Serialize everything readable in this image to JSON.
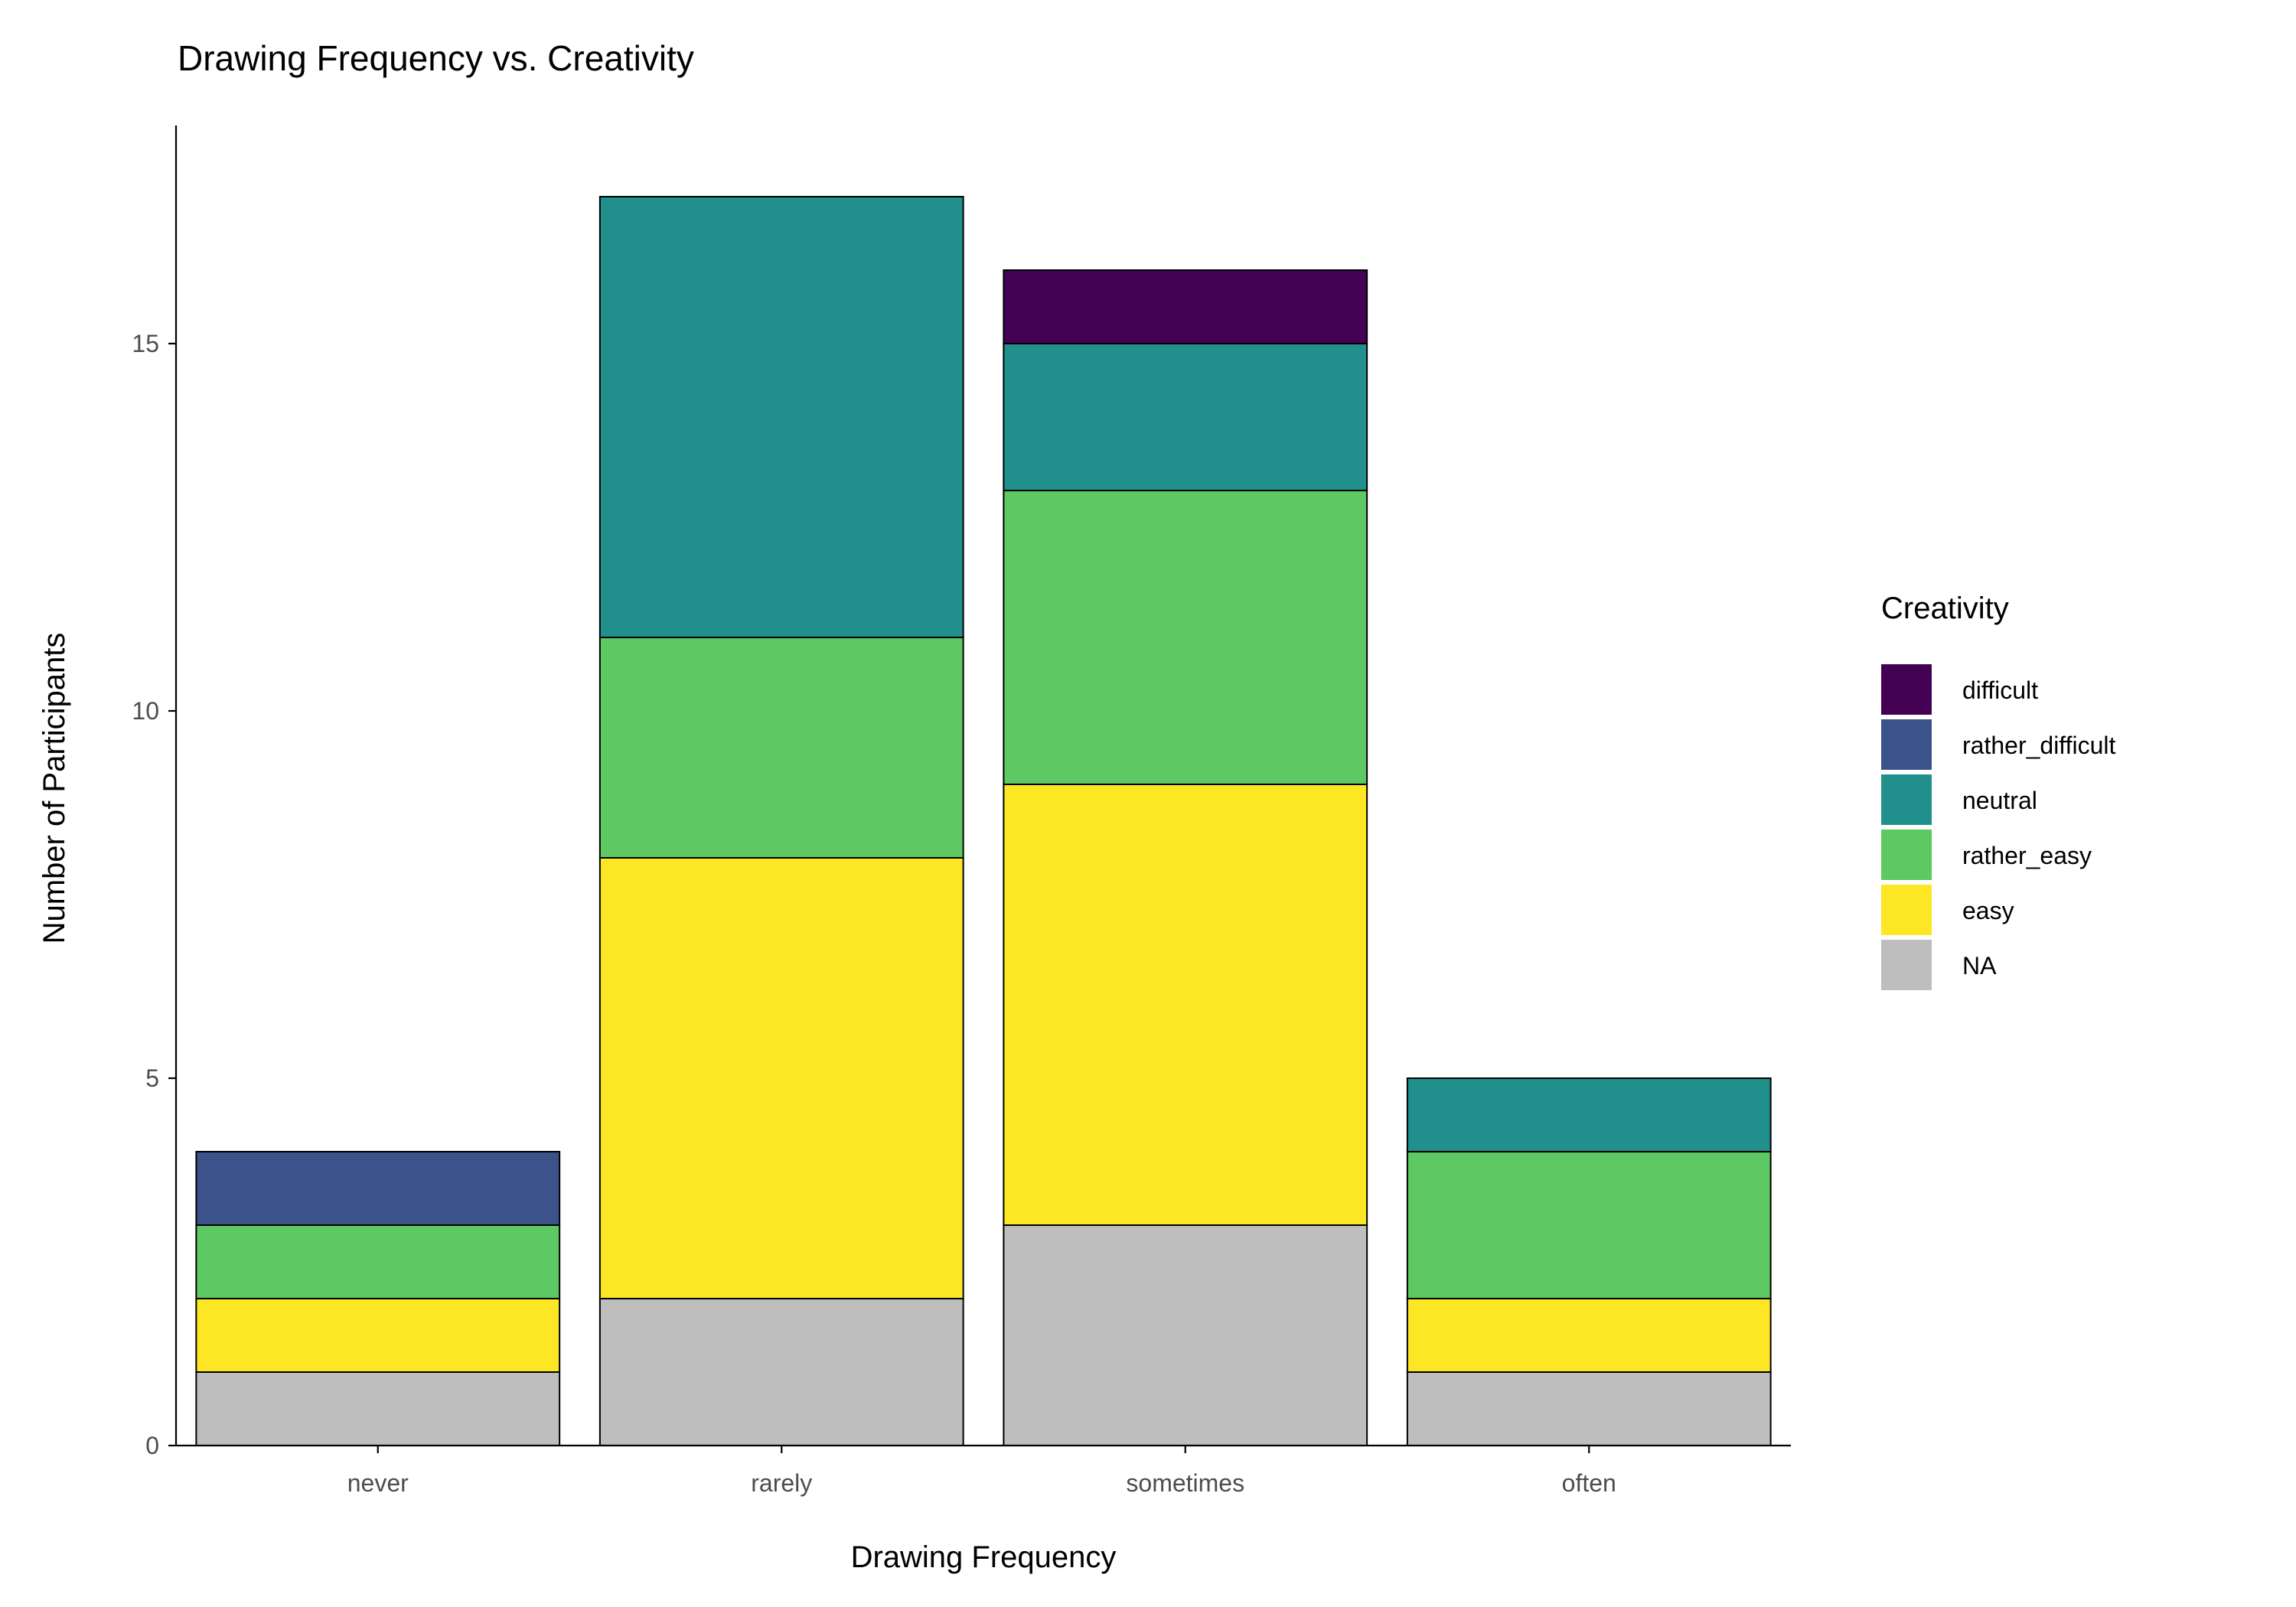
{
  "chart_data": {
    "type": "bar",
    "stacked": true,
    "title": "Drawing Frequency vs. Creativity",
    "xlabel": "Drawing Frequency",
    "ylabel": "Number of Participants",
    "categories": [
      "never",
      "rarely",
      "sometimes",
      "often"
    ],
    "ylim": [
      0,
      18
    ],
    "yticks": [
      0,
      5,
      10,
      15
    ],
    "legend": {
      "title": "Creativity",
      "position": "right"
    },
    "grid": false,
    "series": [
      {
        "name": "NA",
        "color": "#BEBEBE",
        "values": [
          1,
          2,
          3,
          1
        ]
      },
      {
        "name": "easy",
        "color": "#FDE725",
        "values": [
          1,
          6,
          6,
          1
        ]
      },
      {
        "name": "rather_easy",
        "color": "#5EC962",
        "values": [
          1,
          3,
          4,
          2
        ]
      },
      {
        "name": "neutral",
        "color": "#21908C",
        "values": [
          0,
          6,
          2,
          1
        ]
      },
      {
        "name": "rather_difficult",
        "color": "#3B528B",
        "values": [
          1,
          0,
          0,
          0
        ]
      },
      {
        "name": "difficult",
        "color": "#440154",
        "values": [
          0,
          0,
          1,
          0
        ]
      }
    ],
    "legend_order": [
      "difficult",
      "rather_difficult",
      "neutral",
      "rather_easy",
      "easy",
      "NA"
    ]
  }
}
